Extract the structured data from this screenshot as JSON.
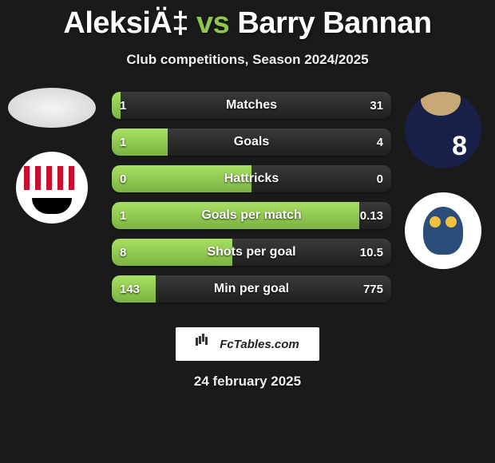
{
  "title": {
    "player1": "AleksiÄ‡",
    "vs": "vs",
    "player2": "Barry Bannan"
  },
  "subtitle": "Club competitions, Season 2024/2025",
  "colors": {
    "bar_left_top": "#a8e063",
    "bar_left_bottom": "#7cb342",
    "bar_right_top": "#3a3a3a",
    "bar_right_bottom": "#1f1f1f",
    "background": "#1a1a1a",
    "title_accent": "#8fc74a"
  },
  "player_right_number": "8",
  "stats": [
    {
      "label": "Matches",
      "left_val": "1",
      "right_val": "31",
      "left_pct": 3.1,
      "right_pct": 96.9
    },
    {
      "label": "Goals",
      "left_val": "1",
      "right_val": "4",
      "left_pct": 20,
      "right_pct": 80
    },
    {
      "label": "Hattricks",
      "left_val": "0",
      "right_val": "0",
      "left_pct": 50,
      "right_pct": 50
    },
    {
      "label": "Goals per match",
      "left_val": "1",
      "right_val": "0.13",
      "left_pct": 88.5,
      "right_pct": 11.5
    },
    {
      "label": "Shots per goal",
      "left_val": "8",
      "right_val": "10.5",
      "left_pct": 43.2,
      "right_pct": 56.8
    },
    {
      "label": "Min per goal",
      "left_val": "143",
      "right_val": "775",
      "left_pct": 15.6,
      "right_pct": 84.4
    }
  ],
  "footer": {
    "brand": "FcTables.com",
    "date": "24 february 2025"
  }
}
